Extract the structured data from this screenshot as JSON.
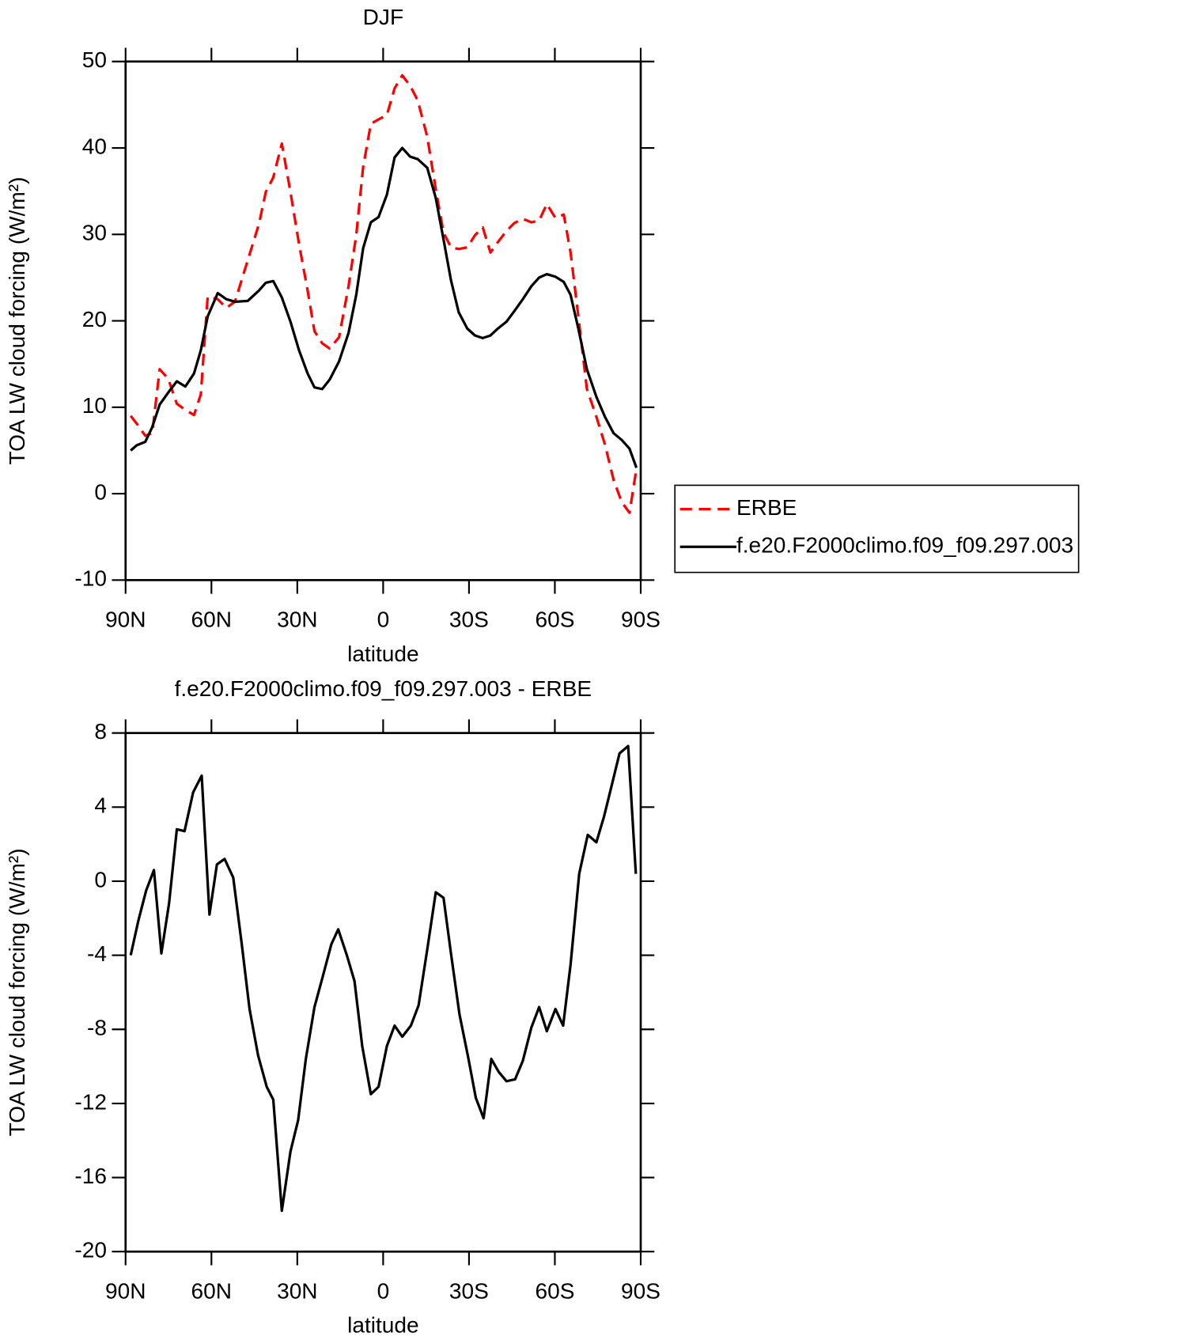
{
  "chart_data": [
    {
      "type": "line",
      "title": "DJF",
      "x_label": "latitude",
      "y_label": "TOA LW cloud forcing (W/m²)",
      "x": [
        88.2,
        86.1,
        83.1,
        80.7,
        78.1,
        75.1,
        72.1,
        69.1,
        66.1,
        63.7,
        61.3,
        57.8,
        54.8,
        51.8,
        47.3,
        43.4,
        41.0,
        38.4,
        35.4,
        32.4,
        29.4,
        26.4,
        24.0,
        21.3,
        18.7,
        15.4,
        12.1,
        9.4,
        7.0,
        4.3,
        1.6,
        -1.3,
        -4.0,
        -6.7,
        -9.4,
        -12.1,
        -15.4,
        -18.4,
        -21.1,
        -23.7,
        -26.4,
        -29.4,
        -32.1,
        -34.8,
        -37.5,
        -40.1,
        -43.1,
        -45.8,
        -48.8,
        -51.8,
        -54.5,
        -57.2,
        -60.2,
        -63.1,
        -65.5,
        -68.2,
        -71.2,
        -74.5,
        -77.5,
        -80.5,
        -83.4,
        -86.1,
        -88.5
      ],
      "series": [
        {
          "name": "ERBE",
          "color": "#ff0000",
          "line_style": "dashed",
          "values": [
            9.0,
            8.1,
            6.7,
            7.0,
            14.4,
            13.3,
            10.4,
            9.7,
            9.1,
            11.5,
            22.8,
            22.5,
            21.5,
            22.2,
            27.0,
            31.2,
            34.9,
            36.6,
            40.5,
            34.9,
            28.9,
            23.5,
            18.8,
            17.4,
            16.8,
            18.1,
            24.0,
            29.9,
            37.8,
            42.8,
            43.3,
            43.8,
            46.9,
            48.4,
            47.2,
            45.5,
            41.3,
            35.2,
            30.2,
            28.5,
            28.3,
            28.5,
            29.9,
            30.8,
            27.9,
            29.1,
            30.4,
            31.3,
            31.8,
            31.4,
            31.6,
            33.5,
            31.9,
            32.3,
            27.9,
            20.5,
            12.1,
            8.9,
            5.7,
            1.6,
            -1.0,
            -2.2,
            2.9
          ]
        },
        {
          "name": "f.e20.F2000climo.f09_f09.297.003",
          "color": "#000000",
          "line_style": "solid",
          "values": [
            5.0,
            5.6,
            6.0,
            7.7,
            10.3,
            11.7,
            13.0,
            12.4,
            13.9,
            16.6,
            20.5,
            23.2,
            22.5,
            22.2,
            22.3,
            23.5,
            24.4,
            24.6,
            22.7,
            19.9,
            16.6,
            13.9,
            12.3,
            12.1,
            13.2,
            15.3,
            18.6,
            23.0,
            28.4,
            31.4,
            32.0,
            34.6,
            38.9,
            40.0,
            39.0,
            38.7,
            37.7,
            34.2,
            29.4,
            24.7,
            21.0,
            19.1,
            18.3,
            18.0,
            18.3,
            19.1,
            19.9,
            21.1,
            22.5,
            24.0,
            25.0,
            25.4,
            25.1,
            24.5,
            23.0,
            19.1,
            14.4,
            11.2,
            8.9,
            7.0,
            6.2,
            5.2,
            3.0
          ]
        }
      ],
      "xlim": [
        90,
        -90
      ],
      "xticks": [
        {
          "value": 90,
          "label": "90N"
        },
        {
          "value": 60,
          "label": "60N"
        },
        {
          "value": 30,
          "label": "30N"
        },
        0,
        {
          "value": -30,
          "label": "30S"
        },
        {
          "value": -60,
          "label": "60S"
        },
        {
          "value": -90,
          "label": "90S"
        }
      ],
      "ylim": [
        -10,
        50
      ],
      "yticks": [
        -10,
        0,
        10,
        20,
        30,
        40,
        50
      ],
      "legend": "right",
      "grid": false
    },
    {
      "type": "line",
      "title": "f.e20.F2000climo.f09_f09.297.003 - ERBE",
      "x_label": "latitude",
      "y_label": "TOA LW cloud forcing (W/m²)",
      "x": [
        88.2,
        85.5,
        82.8,
        80.1,
        77.5,
        74.8,
        72.1,
        69.4,
        66.4,
        63.4,
        60.7,
        58.1,
        55.4,
        52.4,
        49.4,
        46.7,
        43.7,
        40.7,
        38.4,
        35.4,
        32.4,
        29.7,
        27.0,
        24.0,
        21.0,
        18.1,
        15.7,
        12.7,
        10.0,
        7.3,
        4.3,
        1.6,
        -1.3,
        -4.0,
        -6.7,
        -9.7,
        -12.4,
        -15.4,
        -18.4,
        -21.1,
        -23.7,
        -26.7,
        -29.7,
        -32.4,
        -35.1,
        -37.8,
        -40.4,
        -43.1,
        -46.1,
        -48.8,
        -51.8,
        -54.5,
        -57.2,
        -60.2,
        -62.9,
        -65.5,
        -68.5,
        -71.5,
        -74.5,
        -77.2,
        -79.9,
        -82.6,
        -85.6,
        -88.3
      ],
      "values": [
        -4.0,
        -2.1,
        -0.5,
        0.6,
        -3.9,
        -1.2,
        2.8,
        2.7,
        4.8,
        5.7,
        -1.8,
        0.9,
        1.2,
        0.2,
        -3.4,
        -6.9,
        -9.4,
        -11.1,
        -11.8,
        -17.8,
        -14.6,
        -12.9,
        -9.6,
        -6.8,
        -5.1,
        -3.4,
        -2.6,
        -4.0,
        -5.4,
        -8.9,
        -11.5,
        -11.1,
        -8.9,
        -7.8,
        -8.4,
        -7.8,
        -6.7,
        -3.7,
        -0.6,
        -0.9,
        -3.9,
        -7.2,
        -9.5,
        -11.7,
        -12.8,
        -9.6,
        -10.3,
        -10.8,
        -10.7,
        -9.7,
        -7.9,
        -6.8,
        -8.1,
        -6.9,
        -7.8,
        -4.5,
        0.4,
        2.5,
        2.1,
        3.5,
        5.2,
        6.9,
        7.3,
        0.4
      ],
      "color": "#000000",
      "xlim": [
        90,
        -90
      ],
      "xticks": [
        {
          "value": 90,
          "label": "90N"
        },
        {
          "value": 60,
          "label": "60N"
        },
        {
          "value": 30,
          "label": "30N"
        },
        0,
        {
          "value": -30,
          "label": "30S"
        },
        {
          "value": -60,
          "label": "60S"
        },
        {
          "value": -90,
          "label": "90S"
        }
      ],
      "ylim": [
        -20,
        8
      ],
      "yticks": [
        -20,
        -16,
        -12,
        -8,
        -4,
        0,
        4,
        8
      ],
      "grid": false
    }
  ]
}
